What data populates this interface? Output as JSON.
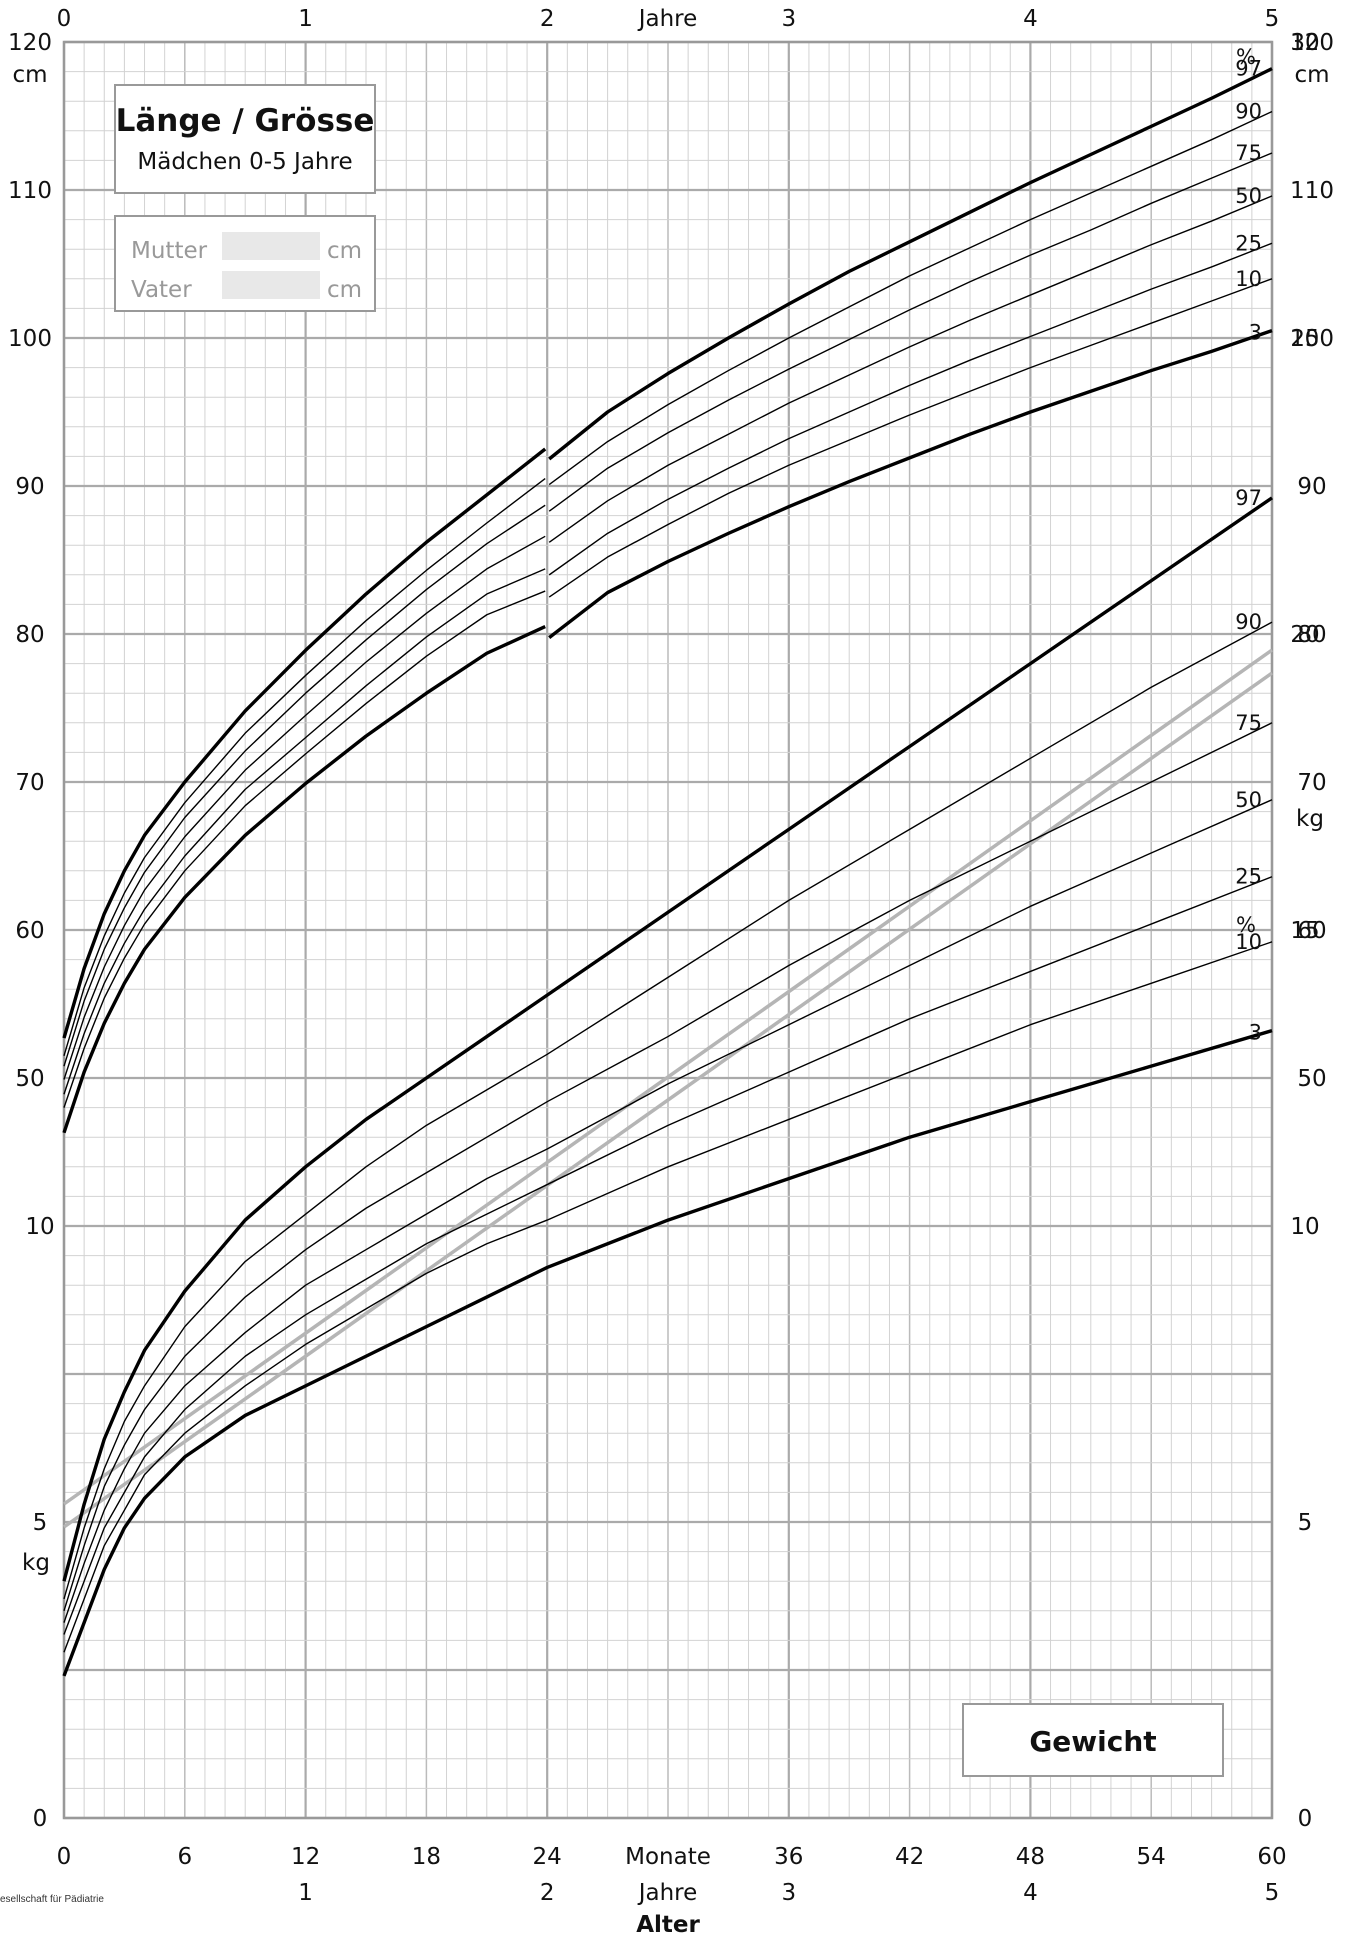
{
  "title_box": {
    "title": "Länge / Grösse",
    "subtitle": "Mädchen 0-5 Jahre"
  },
  "parents_box": {
    "mother_label": "Mutter",
    "father_label": "Vater",
    "unit": "cm"
  },
  "weight_box": {
    "label": "Gewicht"
  },
  "credit": "esellschaft für Pädiatrie",
  "chart_data": [
    {
      "type": "line",
      "title": "Länge / Grösse",
      "subtitle": "Mädchen 0-5 Jahre",
      "ylabel": "cm",
      "ylim": [
        0,
        120
      ],
      "xlim": [
        0,
        60
      ],
      "grid": true,
      "x": [
        0,
        1,
        2,
        3,
        4,
        6,
        9,
        12,
        15,
        18,
        21,
        24,
        27,
        30,
        33,
        36,
        39,
        42,
        45,
        48,
        51,
        54,
        57,
        60
      ],
      "series": [
        {
          "name": "97",
          "values": [
            52.7,
            57.4,
            61.1,
            64.0,
            66.4,
            70.0,
            74.8,
            78.9,
            82.7,
            86.2,
            89.4,
            92.5,
            95.0,
            97.6,
            100.0,
            102.3,
            104.5,
            106.5,
            108.5,
            110.5,
            112.4,
            114.3,
            116.2,
            118.2
          ]
        },
        {
          "name": "90",
          "values": [
            51.5,
            56.1,
            59.6,
            62.5,
            64.9,
            68.6,
            73.3,
            77.2,
            80.9,
            84.3,
            87.5,
            90.5,
            93.0,
            95.5,
            97.8,
            100.0,
            102.1,
            104.2,
            106.1,
            108.0,
            109.8,
            111.6,
            113.4,
            115.3
          ]
        },
        {
          "name": "75",
          "values": [
            50.8,
            55.2,
            58.7,
            61.5,
            63.9,
            67.6,
            72.1,
            76.0,
            79.6,
            83.0,
            86.1,
            88.7,
            91.2,
            93.6,
            95.8,
            97.9,
            99.9,
            101.9,
            103.8,
            105.6,
            107.3,
            109.1,
            110.8,
            112.5
          ]
        },
        {
          "name": "50",
          "values": [
            49.9,
            54.1,
            57.5,
            60.3,
            62.7,
            66.3,
            70.8,
            74.5,
            78.1,
            81.4,
            84.4,
            86.6,
            89.0,
            91.4,
            93.5,
            95.6,
            97.5,
            99.4,
            101.2,
            102.9,
            104.6,
            106.3,
            107.9,
            109.6
          ]
        },
        {
          "name": "25",
          "values": [
            48.9,
            53.0,
            56.4,
            59.1,
            61.4,
            65.0,
            69.5,
            73.0,
            76.5,
            79.8,
            82.7,
            84.4,
            86.8,
            89.1,
            91.2,
            93.2,
            95.0,
            96.8,
            98.5,
            100.1,
            101.7,
            103.3,
            104.8,
            106.4
          ]
        },
        {
          "name": "10",
          "values": [
            48.0,
            52.0,
            55.4,
            58.1,
            60.4,
            64.0,
            68.4,
            71.9,
            75.3,
            78.5,
            81.3,
            82.9,
            85.2,
            87.4,
            89.5,
            91.4,
            93.1,
            94.8,
            96.4,
            98.0,
            99.5,
            101.0,
            102.5,
            104.0
          ]
        },
        {
          "name": "3",
          "values": [
            46.3,
            50.4,
            53.7,
            56.4,
            58.7,
            62.2,
            66.4,
            69.9,
            73.1,
            76.0,
            78.7,
            80.5,
            82.8,
            84.9,
            86.8,
            88.6,
            90.3,
            91.9,
            93.5,
            95.0,
            96.4,
            97.8,
            99.1,
            100.5
          ]
        }
      ]
    },
    {
      "type": "line",
      "title": "Gewicht",
      "ylabel": "kg",
      "ylim": [
        0,
        30
      ],
      "xlim": [
        0,
        60
      ],
      "grid": true,
      "x": [
        0,
        1,
        2,
        3,
        4,
        6,
        9,
        12,
        15,
        18,
        21,
        24,
        30,
        36,
        42,
        48,
        54,
        60
      ],
      "series": [
        {
          "name": "97",
          "values": [
            4.0,
            5.3,
            6.4,
            7.2,
            7.9,
            8.9,
            10.1,
            11.0,
            11.8,
            12.5,
            13.2,
            13.9,
            15.3,
            16.7,
            18.1,
            19.5,
            20.9,
            22.3
          ]
        },
        {
          "name": "90",
          "values": [
            3.7,
            4.9,
            5.9,
            6.7,
            7.3,
            8.3,
            9.4,
            10.2,
            11.0,
            11.7,
            12.3,
            12.9,
            14.2,
            15.5,
            16.7,
            17.9,
            19.1,
            20.2
          ]
        },
        {
          "name": "75",
          "values": [
            3.5,
            4.6,
            5.6,
            6.3,
            6.9,
            7.8,
            8.8,
            9.6,
            10.3,
            10.9,
            11.5,
            12.1,
            13.2,
            14.4,
            15.5,
            16.5,
            17.5,
            18.5
          ]
        },
        {
          "name": "50",
          "values": [
            3.3,
            4.3,
            5.2,
            5.9,
            6.5,
            7.3,
            8.2,
            9.0,
            9.6,
            10.2,
            10.8,
            11.3,
            12.4,
            13.4,
            14.4,
            15.4,
            16.3,
            17.2
          ]
        },
        {
          "name": "25",
          "values": [
            3.1,
            4.0,
            4.9,
            5.5,
            6.1,
            6.9,
            7.8,
            8.5,
            9.1,
            9.7,
            10.2,
            10.7,
            11.7,
            12.6,
            13.5,
            14.3,
            15.1,
            15.9
          ]
        },
        {
          "name": "10",
          "values": [
            2.8,
            3.7,
            4.6,
            5.2,
            5.8,
            6.5,
            7.3,
            8.0,
            8.6,
            9.2,
            9.7,
            10.1,
            11.0,
            11.8,
            12.6,
            13.4,
            14.1,
            14.8
          ]
        },
        {
          "name": "3",
          "values": [
            2.4,
            3.3,
            4.2,
            4.9,
            5.4,
            6.1,
            6.8,
            7.3,
            7.8,
            8.3,
            8.8,
            9.3,
            10.1,
            10.8,
            11.5,
            12.1,
            12.7,
            13.3
          ]
        }
      ]
    }
  ],
  "axes": {
    "months_label": "Monate",
    "years_label": "Jahre",
    "age_label": "Alter",
    "percent_label": "%",
    "length_unit": "cm",
    "weight_unit": "kg",
    "month_ticks": [
      "0",
      "6",
      "12",
      "18",
      "24",
      "36",
      "42",
      "48",
      "54",
      "60"
    ],
    "year_ticks": [
      "0",
      "1",
      "2",
      "3",
      "4",
      "5"
    ],
    "length_ticks": [
      "120",
      "110",
      "100",
      "90",
      "80",
      "70",
      "60",
      "50"
    ],
    "weight_ticks_left": [
      "10",
      "5",
      "0"
    ],
    "weight_ticks_right": [
      "30",
      "25",
      "20",
      "15",
      "10",
      "5",
      "0"
    ]
  }
}
